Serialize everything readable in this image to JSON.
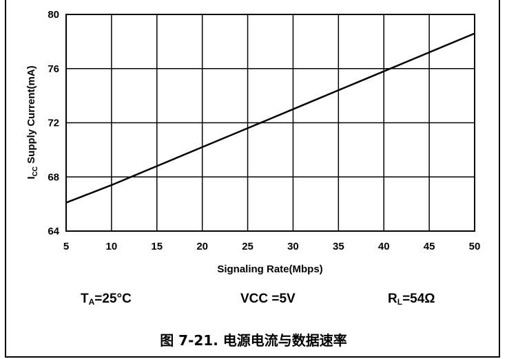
{
  "chart_data": {
    "type": "line",
    "xlabel": "Signaling Rate(Mbps)",
    "ylabel": {
      "main": "I",
      "sub": "CC",
      "rest": " Supply Current(mA)"
    },
    "xlim": [
      5,
      50
    ],
    "ylim": [
      64,
      80
    ],
    "xticks": [
      5,
      10,
      15,
      20,
      25,
      30,
      35,
      40,
      45,
      50
    ],
    "yticks": [
      64,
      68,
      72,
      76,
      80
    ],
    "grid": true,
    "line_color": "#000000",
    "series": [
      {
        "x": [
          5,
          10,
          15,
          20,
          25,
          30,
          35,
          40,
          45,
          50
        ],
        "values": [
          66.1,
          67.4,
          68.8,
          70.2,
          71.6,
          73.0,
          74.4,
          75.8,
          77.2,
          78.6
        ]
      }
    ]
  },
  "conditions": {
    "ta": {
      "main": "T",
      "sub": "A",
      "rest": "=25°C"
    },
    "vcc": "VCC =5V",
    "rl": {
      "main": "R",
      "sub": "L",
      "rest": "=54Ω"
    }
  },
  "caption": "图 7-21. 电源电流与数据速率"
}
